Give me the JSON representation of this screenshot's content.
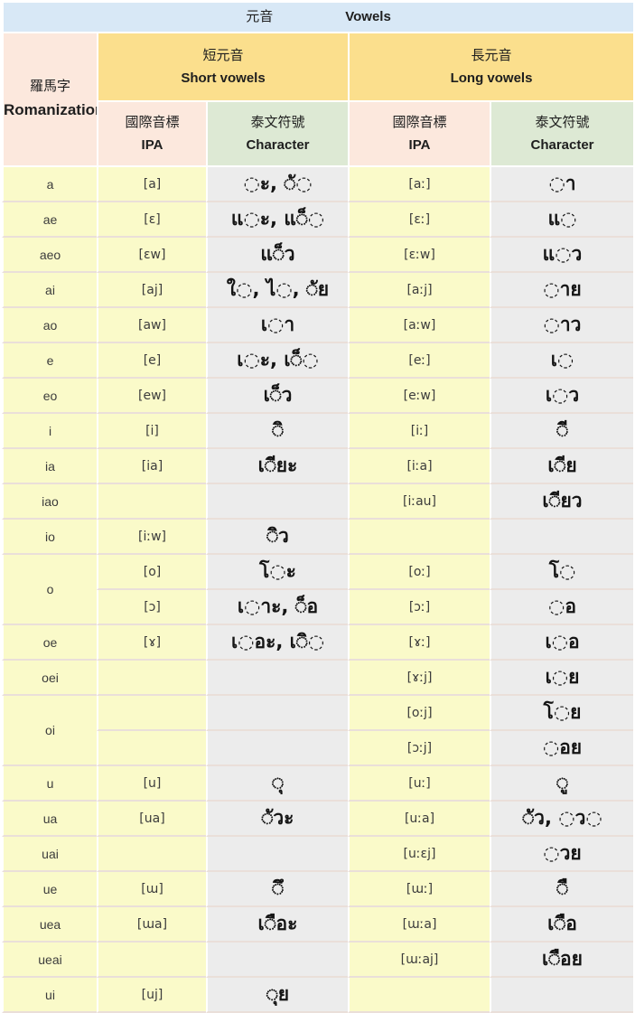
{
  "header": {
    "title": {
      "zh": "元音",
      "en": "Vowels"
    },
    "romanization": {
      "zh": "羅馬字",
      "en": "Romanization"
    },
    "short": {
      "zh": "短元音",
      "en": "Short vowels"
    },
    "long": {
      "zh": "長元音",
      "en": "Long vowels"
    },
    "ipa": {
      "zh": "國際音標",
      "en": "IPA"
    },
    "character": {
      "zh": "泰文符號",
      "en": "Character"
    }
  },
  "colors": {
    "header_blue": "#d8e8f6",
    "header_pink": "#fce8dd",
    "header_yellow": "#fbdf8d",
    "header_green": "#dde9d4",
    "cell_yellow": "#fafac9",
    "cell_gray": "#ececec",
    "row_separator": "#eadfd9"
  },
  "rows": [
    {
      "romanization": "a",
      "short_ipa": "[a]",
      "short_char": "◌ะ, ◌ั◌",
      "long_ipa": "[aː]",
      "long_char": "◌า"
    },
    {
      "romanization": "ae",
      "short_ipa": "[ɛ]",
      "short_char": "แ◌ะ, แ◌็◌",
      "long_ipa": "[ɛː]",
      "long_char": "แ◌"
    },
    {
      "romanization": "aeo",
      "short_ipa": "[ɛw]",
      "short_char": "แ◌็ว",
      "long_ipa": "[ɛːw]",
      "long_char": "แ◌ว"
    },
    {
      "romanization": "ai",
      "short_ipa": "[aj]",
      "short_char": "ใ◌, ไ◌, ◌ัย",
      "long_ipa": "[aːj]",
      "long_char": "◌าย"
    },
    {
      "romanization": "ao",
      "short_ipa": "[aw]",
      "short_char": "เ◌า",
      "long_ipa": "[aːw]",
      "long_char": "◌าว"
    },
    {
      "romanization": "e",
      "short_ipa": "[e]",
      "short_char": "เ◌ะ, เ◌็◌",
      "long_ipa": "[eː]",
      "long_char": "เ◌"
    },
    {
      "romanization": "eo",
      "short_ipa": "[ew]",
      "short_char": "เ◌็ว",
      "long_ipa": "[eːw]",
      "long_char": "เ◌ว"
    },
    {
      "romanization": "i",
      "short_ipa": "[i]",
      "short_char": "◌ิ",
      "long_ipa": "[iː]",
      "long_char": "◌ี"
    },
    {
      "romanization": "ia",
      "short_ipa": "[ia]",
      "short_char": "เ◌ียะ",
      "long_ipa": "[iːa]",
      "long_char": "เ◌ีย"
    },
    {
      "romanization": "iao",
      "short_ipa": "",
      "short_char": "",
      "long_ipa": "[iːau]",
      "long_char": "เ◌ียว"
    },
    {
      "romanization": "io",
      "short_ipa": "[iːw]",
      "short_char": "◌ิว",
      "long_ipa": "",
      "long_char": ""
    },
    {
      "romanization": "o",
      "rowspan": 2,
      "short_ipa": "[o]",
      "short_char": "โ◌ะ",
      "long_ipa": "[oː]",
      "long_char": "โ◌"
    },
    {
      "continuation": true,
      "short_ipa": "[ɔ]",
      "short_char": "เ◌าะ, ◌็อ",
      "long_ipa": "[ɔː]",
      "long_char": "◌อ"
    },
    {
      "romanization": "oe",
      "short_ipa": "[ɤ]",
      "short_char": "เ◌อะ, เ◌ิ◌",
      "long_ipa": "[ɤː]",
      "long_char": "เ◌อ"
    },
    {
      "romanization": "oei",
      "short_ipa": "",
      "short_char": "",
      "long_ipa": "[ɤːj]",
      "long_char": "เ◌ย"
    },
    {
      "romanization": "oi",
      "rowspan": 2,
      "short_ipa": "",
      "short_char": "",
      "long_ipa": "[oːj]",
      "long_char": "โ◌ย"
    },
    {
      "continuation": true,
      "short_ipa": "",
      "short_char": "",
      "long_ipa": "[ɔːj]",
      "long_char": "◌อย"
    },
    {
      "romanization": "u",
      "short_ipa": "[u]",
      "short_char": "◌ุ",
      "long_ipa": "[uː]",
      "long_char": "◌ู"
    },
    {
      "romanization": "ua",
      "short_ipa": "[ua]",
      "short_char": "◌ัวะ",
      "long_ipa": "[uːa]",
      "long_char": "◌ัว, ◌ว◌"
    },
    {
      "romanization": "uai",
      "short_ipa": "",
      "short_char": "",
      "long_ipa": "[uːɛj]",
      "long_char": "◌วย"
    },
    {
      "romanization": "ue",
      "short_ipa": "[ɯ]",
      "short_char": "◌ึ",
      "long_ipa": "[ɯː]",
      "long_char": "◌ื"
    },
    {
      "romanization": "uea",
      "short_ipa": "[ɯa]",
      "short_char": "เ◌ือะ",
      "long_ipa": "[ɯːa]",
      "long_char": "เ◌ือ"
    },
    {
      "romanization": "ueai",
      "short_ipa": "",
      "short_char": "",
      "long_ipa": "[ɯːaj]",
      "long_char": "เ◌ือย"
    },
    {
      "romanization": "ui",
      "short_ipa": "[uj]",
      "short_char": "◌ุย",
      "long_ipa": "",
      "long_char": ""
    }
  ]
}
